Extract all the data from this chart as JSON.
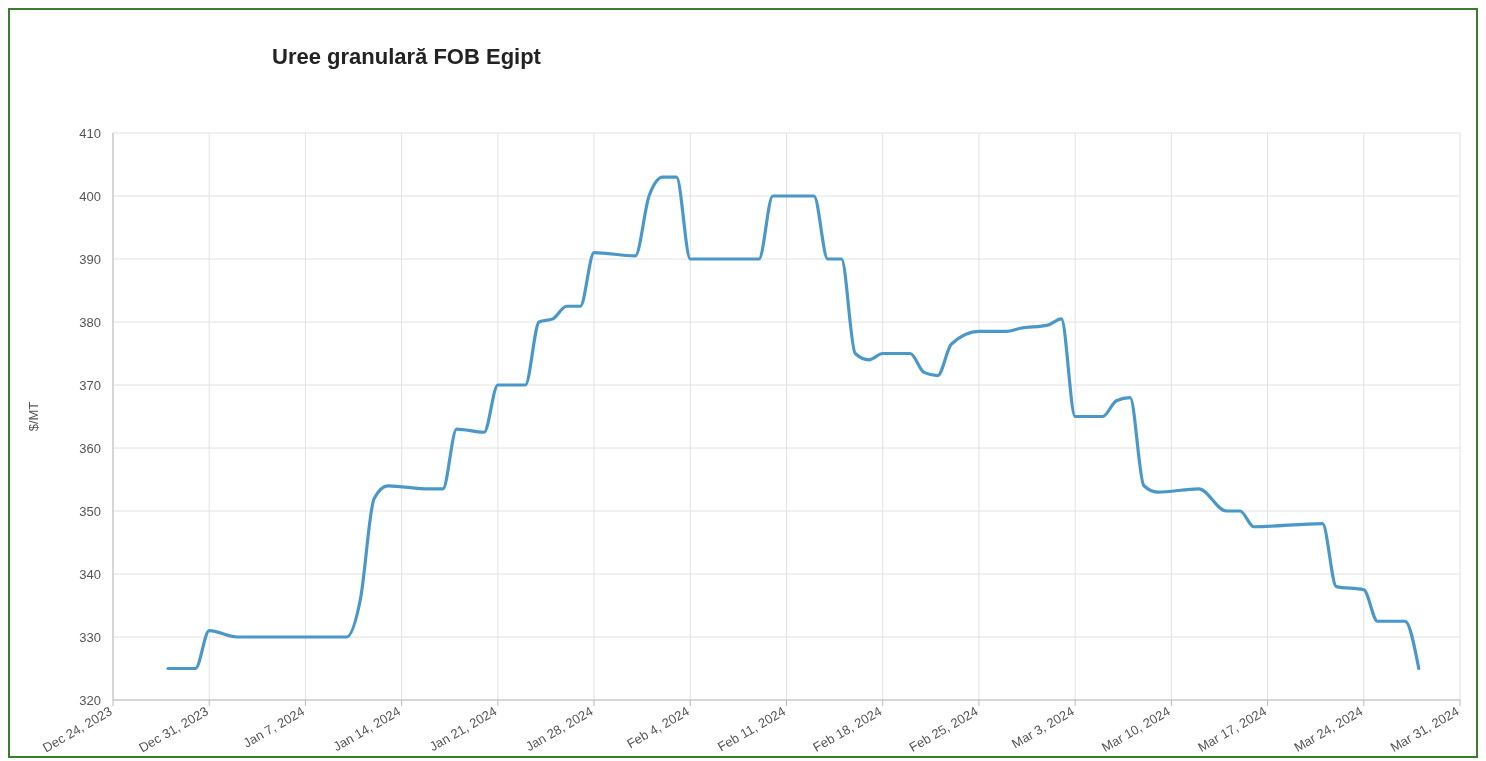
{
  "chart_data": {
    "type": "line",
    "title": "Uree granulară FOB Egipt",
    "ylabel": "$/MT",
    "x": [
      "2023-12-28",
      "2023-12-29",
      "2023-12-30",
      "2023-12-31",
      "2024-01-02",
      "2024-01-05",
      "2024-01-08",
      "2024-01-10",
      "2024-01-11",
      "2024-01-12",
      "2024-01-13",
      "2024-01-16",
      "2024-01-17",
      "2024-01-18",
      "2024-01-20",
      "2024-01-21",
      "2024-01-23",
      "2024-01-24",
      "2024-01-25",
      "2024-01-26",
      "2024-01-27",
      "2024-01-28",
      "2024-01-31",
      "2024-02-01",
      "2024-02-02",
      "2024-02-03",
      "2024-02-04",
      "2024-02-09",
      "2024-02-10",
      "2024-02-13",
      "2024-02-14",
      "2024-02-15",
      "2024-02-16",
      "2024-02-17",
      "2024-02-18",
      "2024-02-20",
      "2024-02-21",
      "2024-02-22",
      "2024-02-23",
      "2024-02-25",
      "2024-02-27",
      "2024-02-28",
      "2024-03-01",
      "2024-03-02",
      "2024-03-03",
      "2024-03-05",
      "2024-03-06",
      "2024-03-07",
      "2024-03-08",
      "2024-03-09",
      "2024-03-12",
      "2024-03-14",
      "2024-03-15",
      "2024-03-16",
      "2024-03-21",
      "2024-03-22",
      "2024-03-24",
      "2024-03-25",
      "2024-03-27",
      "2024-03-28"
    ],
    "series": [
      {
        "color": "#4a98c9",
        "values": [
          325,
          325,
          325,
          331,
          330,
          330,
          330,
          330,
          336,
          352,
          354,
          353.5,
          353.5,
          363,
          362.5,
          370,
          370,
          380,
          380.5,
          382.5,
          382.5,
          391,
          390.5,
          400,
          403,
          403,
          390,
          390,
          400,
          400,
          390,
          390,
          375,
          374,
          375,
          375,
          372,
          371.5,
          376.5,
          378.5,
          378.5,
          379,
          379.5,
          380.5,
          365,
          365,
          367.5,
          368,
          354,
          353,
          353.5,
          350,
          350,
          347.5,
          348,
          338,
          337.5,
          332.5,
          332.5,
          325
        ]
      }
    ],
    "xlim": [
      "2023-12-24",
      "2024-03-31"
    ],
    "xticks": [
      {
        "value": "2023-12-24",
        "label": "Dec 24, 2023"
      },
      {
        "value": "2023-12-31",
        "label": "Dec 31, 2023"
      },
      {
        "value": "2024-01-07",
        "label": "Jan 7, 2024"
      },
      {
        "value": "2024-01-14",
        "label": "Jan 14, 2024"
      },
      {
        "value": "2024-01-21",
        "label": "Jan 21, 2024"
      },
      {
        "value": "2024-01-28",
        "label": "Jan 28, 2024"
      },
      {
        "value": "2024-02-04",
        "label": "Feb 4, 2024"
      },
      {
        "value": "2024-02-11",
        "label": "Feb 11, 2024"
      },
      {
        "value": "2024-02-18",
        "label": "Feb 18, 2024"
      },
      {
        "value": "2024-02-25",
        "label": "Feb 25, 2024"
      },
      {
        "value": "2024-03-03",
        "label": "Mar 3, 2024"
      },
      {
        "value": "2024-03-10",
        "label": "Mar 10, 2024"
      },
      {
        "value": "2024-03-17",
        "label": "Mar 17, 2024"
      },
      {
        "value": "2024-03-24",
        "label": "Mar 24, 2024"
      },
      {
        "value": "2024-03-31",
        "label": "Mar 31, 2024"
      }
    ],
    "ylim": [
      320,
      410
    ],
    "yticks": [
      320,
      330,
      340,
      350,
      360,
      370,
      380,
      390,
      400,
      410
    ],
    "grid": true,
    "marker": "none",
    "line_style": "solid"
  }
}
